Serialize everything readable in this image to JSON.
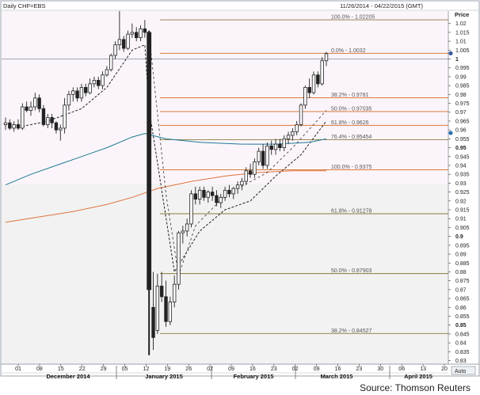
{
  "header": {
    "title": "Daily CHF=EBS",
    "date_range": "11/26/2014 - 04/22/2015 (GMT)",
    "price_label": "Price",
    "auto_label": "Auto"
  },
  "source": "Source: Thomson Reuters",
  "chart_data": {
    "type": "candlestick",
    "title": "Daily CHF=EBS",
    "xlabel": "",
    "ylabel": "Price",
    "ylim": [
      0.828,
      1.027
    ],
    "y_ticks": [
      "1.02",
      "1.015",
      "1.01",
      "1.005",
      "1",
      "0.995",
      "0.99",
      "0.985",
      "0.98",
      "0.975",
      "0.97",
      "0.965",
      "0.96",
      "0.955",
      "0.95",
      "0.945",
      "0.94",
      "0.935",
      "0.93",
      "0.925",
      "0.92",
      "0.915",
      "0.91",
      "0.905",
      "0.9",
      "0.895",
      "0.89",
      "0.885",
      "0.88",
      "0.875",
      "0.87",
      "0.865",
      "0.86",
      "0.855",
      "0.85",
      "0.845",
      "0.84",
      "0.835",
      "0.83"
    ],
    "x_day_ticks": [
      "01",
      "08",
      "15",
      "22",
      "29",
      "05",
      "12",
      "19",
      "26",
      "02",
      "09",
      "16",
      "23",
      "02",
      "09",
      "16",
      "23",
      "30",
      "06",
      "13",
      "20"
    ],
    "x_month_labels": [
      "December 2014",
      "January 2015",
      "February 2015",
      "March 2015",
      "April 2015"
    ],
    "fib_levels": [
      {
        "label": "100.0% - 1.02205",
        "value": 1.02205,
        "color": "#8a7a3a"
      },
      {
        "label": "0.0% - 1.0032",
        "value": 1.0032,
        "color": "#d2691e"
      },
      {
        "label": "38.2% - 0.9781",
        "value": 0.9781,
        "color": "#d2691e"
      },
      {
        "label": "50.0% - 0.97035",
        "value": 0.97035,
        "color": "#d2691e"
      },
      {
        "label": "61.8% - 0.9626",
        "value": 0.9626,
        "color": "#d2691e"
      },
      {
        "label": "76.4% - 0.95454",
        "value": 0.95454,
        "color": "#8a7a3a"
      },
      {
        "label": "100.0% - 0.9375",
        "value": 0.9375,
        "color": "#d2691e"
      },
      {
        "label": "61.8% - 0.91278",
        "value": 0.91278,
        "color": "#8a7a3a"
      },
      {
        "label": "50.0% - 0.87903",
        "value": 0.87903,
        "color": "#8a7a3a"
      },
      {
        "label": "38.2% - 0.84527",
        "value": 0.84527,
        "color": "#8a7a3a"
      }
    ],
    "reference_line": {
      "value": 1.0,
      "label": "1"
    },
    "price_markers": [
      {
        "value": 1.0032,
        "color": "#3b5998"
      },
      {
        "value": 0.9583,
        "color": "#2a6fb0"
      }
    ],
    "candles": [
      {
        "date": "2014-11-26",
        "open": 0.963,
        "high": 0.967,
        "low": 0.96,
        "close": 0.964
      },
      {
        "date": "2014-11-27",
        "open": 0.964,
        "high": 0.966,
        "low": 0.96,
        "close": 0.961
      },
      {
        "date": "2014-11-28",
        "open": 0.961,
        "high": 0.965,
        "low": 0.959,
        "close": 0.963
      },
      {
        "date": "2014-12-01",
        "open": 0.963,
        "high": 0.966,
        "low": 0.96,
        "close": 0.961
      },
      {
        "date": "2014-12-02",
        "open": 0.961,
        "high": 0.975,
        "low": 0.96,
        "close": 0.973
      },
      {
        "date": "2014-12-03",
        "open": 0.973,
        "high": 0.976,
        "low": 0.97,
        "close": 0.971
      },
      {
        "date": "2014-12-04",
        "open": 0.971,
        "high": 0.976,
        "low": 0.968,
        "close": 0.973
      },
      {
        "date": "2014-12-05",
        "open": 0.973,
        "high": 0.981,
        "low": 0.971,
        "close": 0.978
      },
      {
        "date": "2014-12-08",
        "open": 0.978,
        "high": 0.98,
        "low": 0.97,
        "close": 0.972
      },
      {
        "date": "2014-12-09",
        "open": 0.972,
        "high": 0.974,
        "low": 0.962,
        "close": 0.963
      },
      {
        "date": "2014-12-10",
        "open": 0.963,
        "high": 0.969,
        "low": 0.961,
        "close": 0.967
      },
      {
        "date": "2014-12-11",
        "open": 0.967,
        "high": 0.969,
        "low": 0.961,
        "close": 0.964
      },
      {
        "date": "2014-12-12",
        "open": 0.964,
        "high": 0.965,
        "low": 0.958,
        "close": 0.96
      },
      {
        "date": "2014-12-15",
        "open": 0.96,
        "high": 0.963,
        "low": 0.954,
        "close": 0.961
      },
      {
        "date": "2014-12-16",
        "open": 0.961,
        "high": 0.978,
        "low": 0.958,
        "close": 0.974
      },
      {
        "date": "2014-12-17",
        "open": 0.974,
        "high": 0.982,
        "low": 0.971,
        "close": 0.98
      },
      {
        "date": "2014-12-18",
        "open": 0.98,
        "high": 0.984,
        "low": 0.976,
        "close": 0.982
      },
      {
        "date": "2014-12-19",
        "open": 0.982,
        "high": 0.984,
        "low": 0.976,
        "close": 0.978
      },
      {
        "date": "2014-12-22",
        "open": 0.978,
        "high": 0.986,
        "low": 0.976,
        "close": 0.984
      },
      {
        "date": "2014-12-23",
        "open": 0.984,
        "high": 0.986,
        "low": 0.979,
        "close": 0.981
      },
      {
        "date": "2014-12-24",
        "open": 0.981,
        "high": 0.989,
        "low": 0.98,
        "close": 0.986
      },
      {
        "date": "2014-12-26",
        "open": 0.986,
        "high": 0.99,
        "low": 0.984,
        "close": 0.988
      },
      {
        "date": "2014-12-29",
        "open": 0.988,
        "high": 0.99,
        "low": 0.983,
        "close": 0.985
      },
      {
        "date": "2014-12-30",
        "open": 0.985,
        "high": 0.993,
        "low": 0.983,
        "close": 0.991
      },
      {
        "date": "2014-12-31",
        "open": 0.991,
        "high": 0.996,
        "low": 0.99,
        "close": 0.994
      },
      {
        "date": "2015-01-02",
        "open": 0.994,
        "high": 1.003,
        "low": 0.993,
        "close": 1.002
      },
      {
        "date": "2015-01-05",
        "open": 1.002,
        "high": 1.01,
        "low": 1.0,
        "close": 1.008
      },
      {
        "date": "2015-01-06",
        "open": 1.008,
        "high": 1.027,
        "low": 1.005,
        "close": 1.011
      },
      {
        "date": "2015-01-07",
        "open": 1.011,
        "high": 1.013,
        "low": 1.004,
        "close": 1.006
      },
      {
        "date": "2015-01-08",
        "open": 1.006,
        "high": 1.016,
        "low": 1.005,
        "close": 1.014
      },
      {
        "date": "2015-01-09",
        "open": 1.014,
        "high": 1.02,
        "low": 1.012,
        "close": 1.015
      },
      {
        "date": "2015-01-12",
        "open": 1.015,
        "high": 1.018,
        "low": 1.01,
        "close": 1.012
      },
      {
        "date": "2015-01-13",
        "open": 1.012,
        "high": 1.019,
        "low": 1.01,
        "close": 1.017
      },
      {
        "date": "2015-01-14",
        "open": 1.017,
        "high": 1.022,
        "low": 1.012,
        "close": 1.015
      },
      {
        "date": "2015-01-15",
        "open": 1.015,
        "high": 1.016,
        "low": 0.833,
        "close": 0.87
      },
      {
        "date": "2015-01-16",
        "open": 0.86,
        "high": 0.88,
        "low": 0.836,
        "close": 0.843
      },
      {
        "date": "2015-01-19",
        "open": 0.847,
        "high": 0.879,
        "low": 0.845,
        "close": 0.872
      },
      {
        "date": "2015-01-20",
        "open": 0.872,
        "high": 0.88,
        "low": 0.863,
        "close": 0.866
      },
      {
        "date": "2015-01-21",
        "open": 0.866,
        "high": 0.875,
        "low": 0.849,
        "close": 0.852
      },
      {
        "date": "2015-01-22",
        "open": 0.852,
        "high": 0.866,
        "low": 0.85,
        "close": 0.863
      },
      {
        "date": "2015-01-23",
        "open": 0.863,
        "high": 0.878,
        "low": 0.86,
        "close": 0.873
      },
      {
        "date": "2015-01-26",
        "open": 0.873,
        "high": 0.903,
        "low": 0.87,
        "close": 0.902
      },
      {
        "date": "2015-01-27",
        "open": 0.902,
        "high": 0.906,
        "low": 0.896,
        "close": 0.903
      },
      {
        "date": "2015-01-28",
        "open": 0.903,
        "high": 0.91,
        "low": 0.9,
        "close": 0.907
      },
      {
        "date": "2015-01-29",
        "open": 0.907,
        "high": 0.926,
        "low": 0.905,
        "close": 0.924
      },
      {
        "date": "2015-01-30",
        "open": 0.924,
        "high": 0.928,
        "low": 0.918,
        "close": 0.921
      },
      {
        "date": "2015-02-02",
        "open": 0.921,
        "high": 0.928,
        "low": 0.918,
        "close": 0.926
      },
      {
        "date": "2015-02-03",
        "open": 0.926,
        "high": 0.928,
        "low": 0.92,
        "close": 0.922
      },
      {
        "date": "2015-02-04",
        "open": 0.922,
        "high": 0.926,
        "low": 0.919,
        "close": 0.925
      },
      {
        "date": "2015-02-05",
        "open": 0.925,
        "high": 0.928,
        "low": 0.92,
        "close": 0.923
      },
      {
        "date": "2015-02-06",
        "open": 0.923,
        "high": 0.926,
        "low": 0.917,
        "close": 0.919
      },
      {
        "date": "2015-02-09",
        "open": 0.919,
        "high": 0.924,
        "low": 0.916,
        "close": 0.922
      },
      {
        "date": "2015-02-10",
        "open": 0.922,
        "high": 0.928,
        "low": 0.92,
        "close": 0.926
      },
      {
        "date": "2015-02-11",
        "open": 0.926,
        "high": 0.929,
        "low": 0.922,
        "close": 0.924
      },
      {
        "date": "2015-02-12",
        "open": 0.924,
        "high": 0.928,
        "low": 0.921,
        "close": 0.927
      },
      {
        "date": "2015-02-13",
        "open": 0.927,
        "high": 0.931,
        "low": 0.924,
        "close": 0.929
      },
      {
        "date": "2015-02-16",
        "open": 0.929,
        "high": 0.933,
        "low": 0.926,
        "close": 0.931
      },
      {
        "date": "2015-02-17",
        "open": 0.931,
        "high": 0.939,
        "low": 0.929,
        "close": 0.937
      },
      {
        "date": "2015-02-18",
        "open": 0.937,
        "high": 0.941,
        "low": 0.933,
        "close": 0.935
      },
      {
        "date": "2015-02-19",
        "open": 0.935,
        "high": 0.944,
        "low": 0.933,
        "close": 0.942
      },
      {
        "date": "2015-02-20",
        "open": 0.942,
        "high": 0.95,
        "low": 0.94,
        "close": 0.948
      },
      {
        "date": "2015-02-23",
        "open": 0.948,
        "high": 0.952,
        "low": 0.938,
        "close": 0.94
      },
      {
        "date": "2015-02-24",
        "open": 0.94,
        "high": 0.953,
        "low": 0.938,
        "close": 0.951
      },
      {
        "date": "2015-02-25",
        "open": 0.951,
        "high": 0.954,
        "low": 0.946,
        "close": 0.949
      },
      {
        "date": "2015-02-26",
        "open": 0.949,
        "high": 0.955,
        "low": 0.946,
        "close": 0.952
      },
      {
        "date": "2015-02-27",
        "open": 0.952,
        "high": 0.955,
        "low": 0.948,
        "close": 0.95
      },
      {
        "date": "2015-03-02",
        "open": 0.95,
        "high": 0.957,
        "low": 0.948,
        "close": 0.955
      },
      {
        "date": "2015-03-03",
        "open": 0.955,
        "high": 0.959,
        "low": 0.952,
        "close": 0.957
      },
      {
        "date": "2015-03-04",
        "open": 0.957,
        "high": 0.961,
        "low": 0.954,
        "close": 0.959
      },
      {
        "date": "2015-03-05",
        "open": 0.959,
        "high": 0.965,
        "low": 0.957,
        "close": 0.963
      },
      {
        "date": "2015-03-06",
        "open": 0.963,
        "high": 0.975,
        "low": 0.962,
        "close": 0.974
      },
      {
        "date": "2015-03-09",
        "open": 0.974,
        "high": 0.985,
        "low": 0.972,
        "close": 0.984
      },
      {
        "date": "2015-03-10",
        "open": 0.984,
        "high": 0.989,
        "low": 0.978,
        "close": 0.981
      },
      {
        "date": "2015-03-11",
        "open": 0.981,
        "high": 0.993,
        "low": 0.98,
        "close": 0.991
      },
      {
        "date": "2015-03-12",
        "open": 0.991,
        "high": 0.993,
        "low": 0.984,
        "close": 0.986
      },
      {
        "date": "2015-03-13",
        "open": 0.986,
        "high": 1.001,
        "low": 0.985,
        "close": 0.999
      },
      {
        "date": "2015-03-16",
        "open": 0.999,
        "high": 1.004,
        "low": 0.996,
        "close": 1.003
      }
    ],
    "series": [
      {
        "type": "sma",
        "color": "#222222",
        "dash": "3,2",
        "points": [
          [
            4,
            0.962
          ],
          [
            10,
            0.965
          ],
          [
            18,
            0.972
          ],
          [
            24,
            0.984
          ],
          [
            30,
            1.005
          ],
          [
            33,
            1.008
          ],
          [
            34,
            0.972
          ],
          [
            40,
            0.88
          ],
          [
            46,
            0.903
          ],
          [
            52,
            0.915
          ],
          [
            58,
            0.92
          ],
          [
            64,
            0.934
          ],
          [
            70,
            0.946
          ],
          [
            76,
            0.965
          ]
        ]
      },
      {
        "type": "sma",
        "color": "#1b7a93",
        "points": [
          [
            0,
            0.929
          ],
          [
            6,
            0.935
          ],
          [
            12,
            0.94
          ],
          [
            18,
            0.945
          ],
          [
            24,
            0.95
          ],
          [
            30,
            0.956
          ],
          [
            33,
            0.958
          ],
          [
            38,
            0.955
          ],
          [
            46,
            0.953
          ],
          [
            56,
            0.952
          ],
          [
            64,
            0.952
          ],
          [
            72,
            0.953
          ],
          [
            76,
            0.955
          ]
        ]
      },
      {
        "type": "sma",
        "color": "#e0733a",
        "points": [
          [
            0,
            0.908
          ],
          [
            8,
            0.911
          ],
          [
            16,
            0.914
          ],
          [
            24,
            0.918
          ],
          [
            30,
            0.922
          ],
          [
            36,
            0.927
          ],
          [
            44,
            0.931
          ],
          [
            52,
            0.934
          ],
          [
            60,
            0.936
          ],
          [
            68,
            0.937
          ],
          [
            76,
            0.937
          ]
        ]
      },
      {
        "type": "projection",
        "color": "#333333",
        "dash": "3,3",
        "points": [
          [
            34,
            1.014
          ],
          [
            38,
            0.924
          ],
          [
            41,
            0.878
          ],
          [
            45,
            0.906
          ],
          [
            52,
            0.923
          ],
          [
            62,
            0.936
          ],
          [
            68,
            0.95
          ],
          [
            76,
            0.971
          ]
        ]
      }
    ]
  }
}
